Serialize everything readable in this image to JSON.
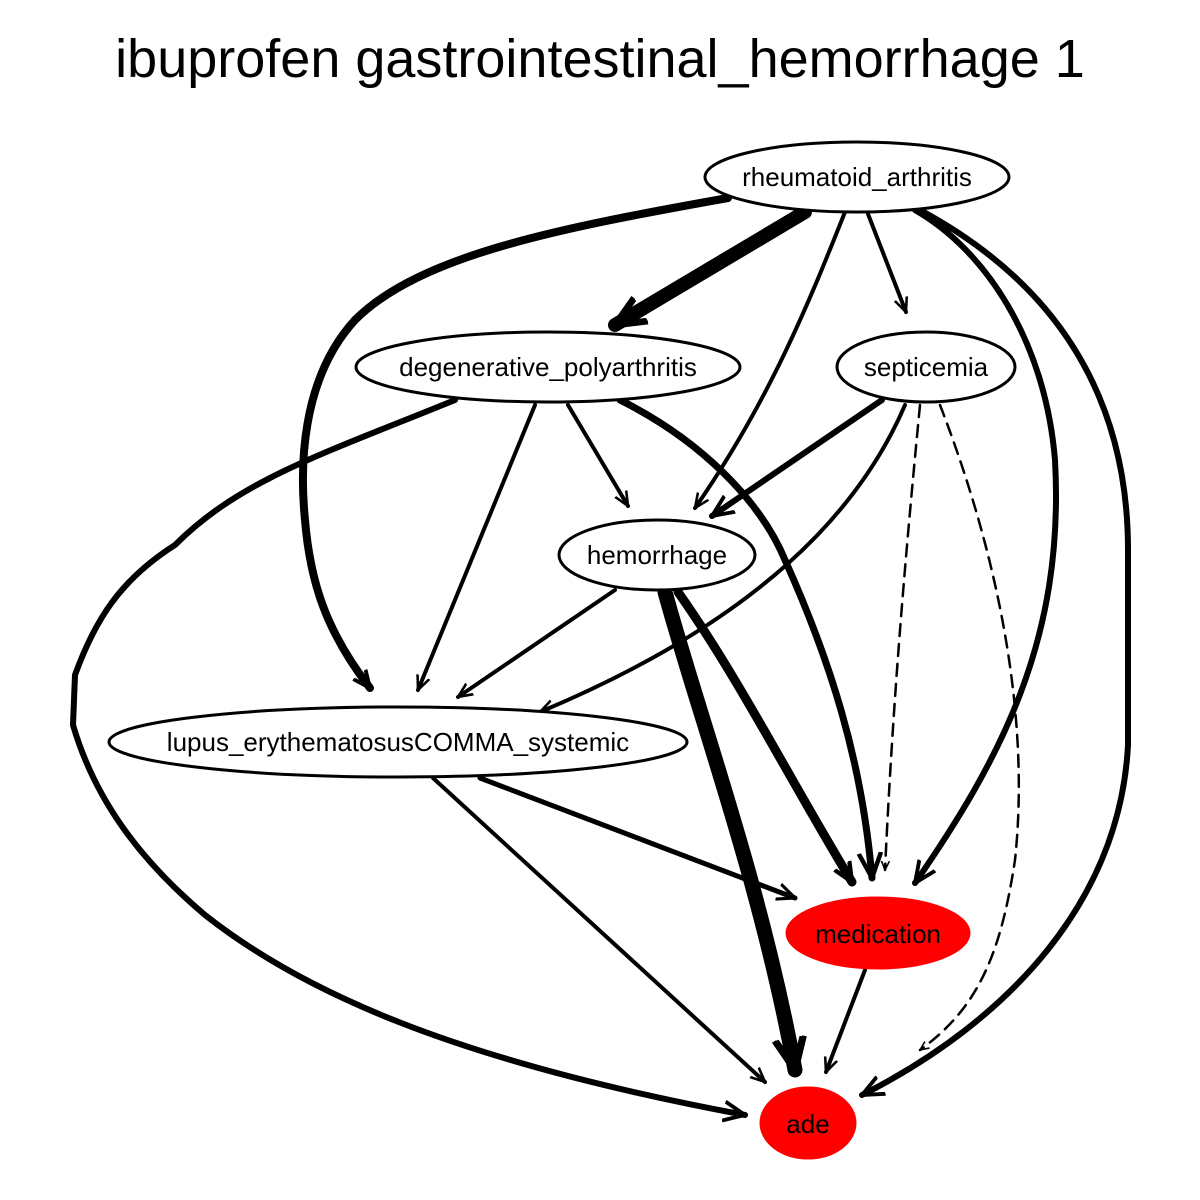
{
  "title": "ibuprofen gastrointestinal_hemorrhage 1",
  "nodes": {
    "rheumatoid_arthritis": {
      "label": "rheumatoid_arthritis",
      "fill": "#ffffff"
    },
    "degenerative_polyarthritis": {
      "label": "degenerative_polyarthritis",
      "fill": "#ffffff"
    },
    "septicemia": {
      "label": "septicemia",
      "fill": "#ffffff"
    },
    "hemorrhage": {
      "label": "hemorrhage",
      "fill": "#ffffff"
    },
    "lupus": {
      "label": "lupus_erythematosusCOMMA_systemic",
      "fill": "#ffffff"
    },
    "medication": {
      "label": "medication",
      "fill": "#ff0000"
    },
    "ade": {
      "label": "ade",
      "fill": "#ff0000"
    }
  },
  "edges": [
    {
      "from": "rheumatoid_arthritis",
      "to": "degenerative_polyarthritis",
      "style": "solid"
    },
    {
      "from": "rheumatoid_arthritis",
      "to": "lupus",
      "style": "solid"
    },
    {
      "from": "rheumatoid_arthritis",
      "to": "hemorrhage",
      "style": "solid"
    },
    {
      "from": "rheumatoid_arthritis",
      "to": "septicemia",
      "style": "solid"
    },
    {
      "from": "rheumatoid_arthritis",
      "to": "medication",
      "style": "solid"
    },
    {
      "from": "rheumatoid_arthritis",
      "to": "ade",
      "style": "solid"
    },
    {
      "from": "degenerative_polyarthritis",
      "to": "hemorrhage",
      "style": "solid"
    },
    {
      "from": "degenerative_polyarthritis",
      "to": "lupus",
      "style": "solid"
    },
    {
      "from": "degenerative_polyarthritis",
      "to": "medication",
      "style": "solid"
    },
    {
      "from": "degenerative_polyarthritis",
      "to": "ade",
      "style": "solid"
    },
    {
      "from": "septicemia",
      "to": "hemorrhage",
      "style": "solid"
    },
    {
      "from": "septicemia",
      "to": "lupus",
      "style": "solid"
    },
    {
      "from": "septicemia",
      "to": "medication",
      "style": "dashed"
    },
    {
      "from": "septicemia",
      "to": "ade",
      "style": "dashed"
    },
    {
      "from": "hemorrhage",
      "to": "lupus",
      "style": "solid"
    },
    {
      "from": "hemorrhage",
      "to": "medication",
      "style": "solid"
    },
    {
      "from": "hemorrhage",
      "to": "ade",
      "style": "solid"
    },
    {
      "from": "lupus",
      "to": "medication",
      "style": "solid"
    },
    {
      "from": "lupus",
      "to": "ade",
      "style": "solid"
    },
    {
      "from": "medication",
      "to": "ade",
      "style": "solid"
    }
  ]
}
